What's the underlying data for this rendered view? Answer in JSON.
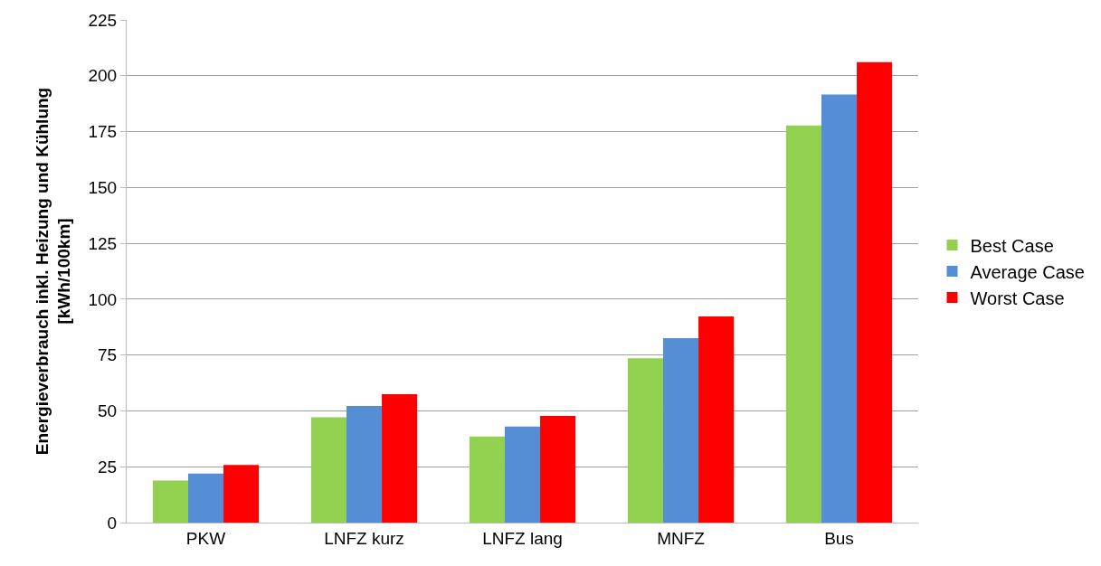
{
  "chart_data": {
    "type": "bar",
    "ylabel": "Energieverbrauch inkl. Heizung und Kühlung\n[kWh/100km]",
    "categories": [
      "PKW",
      "LNFZ kurz",
      "LNFZ lang",
      "MNFZ",
      "Bus"
    ],
    "series": [
      {
        "name": "Best Case",
        "color": "#92d050",
        "values": [
          18.8,
          47.1,
          38.5,
          73.6,
          177.8
        ]
      },
      {
        "name": "Average Case",
        "color": "#558ed5",
        "values": [
          22.0,
          52.2,
          43.0,
          82.6,
          191.6
        ]
      },
      {
        "name": "Worst Case",
        "color": "#ff0000",
        "values": [
          25.8,
          57.5,
          47.8,
          92.3,
          206.1
        ]
      }
    ],
    "ylim": [
      0,
      225
    ],
    "yticks": [
      0,
      25,
      50,
      75,
      100,
      125,
      150,
      175,
      200,
      225
    ],
    "grid": "y",
    "legend": "right"
  }
}
